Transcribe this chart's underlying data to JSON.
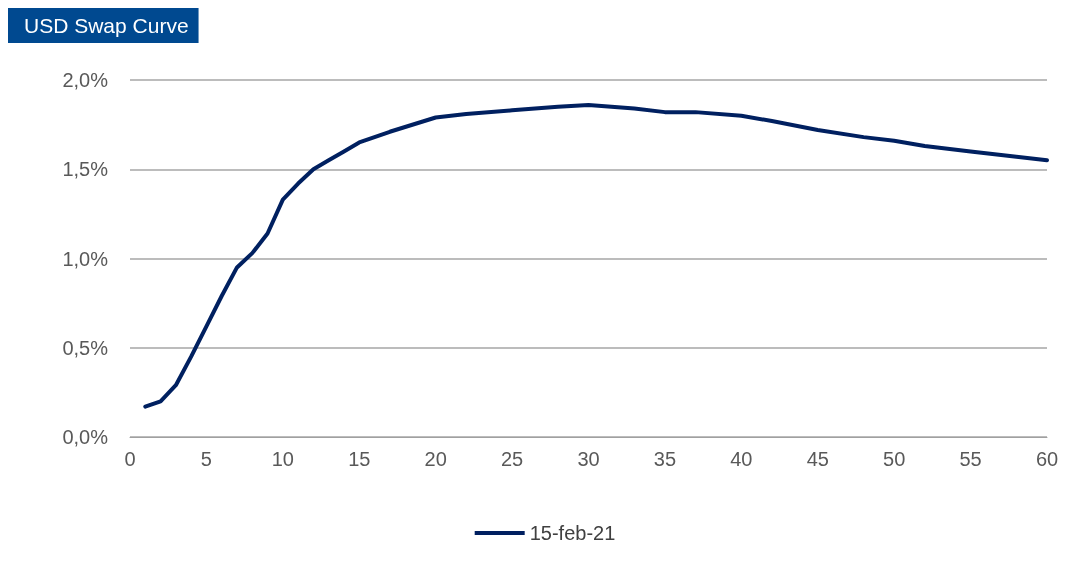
{
  "chart_data": {
    "type": "line",
    "title": "USD Swap Curve",
    "x": [
      1,
      2,
      3,
      4,
      5,
      6,
      7,
      8,
      9,
      10,
      11,
      12,
      13,
      14,
      15,
      17,
      20,
      22,
      25,
      28,
      30,
      33,
      35,
      37,
      40,
      42,
      45,
      48,
      50,
      52,
      55,
      58,
      60
    ],
    "series": [
      {
        "name": "15-feb-21",
        "color": "#002060",
        "values": [
          0.17,
          0.2,
          0.29,
          0.45,
          0.62,
          0.79,
          0.95,
          1.03,
          1.14,
          1.33,
          1.42,
          1.5,
          1.55,
          1.6,
          1.65,
          1.71,
          1.79,
          1.81,
          1.83,
          1.85,
          1.86,
          1.84,
          1.82,
          1.82,
          1.8,
          1.77,
          1.72,
          1.68,
          1.66,
          1.63,
          1.6,
          1.57,
          1.55
        ]
      }
    ],
    "xlim": [
      0,
      60
    ],
    "xticks": [
      0,
      5,
      10,
      15,
      20,
      25,
      30,
      35,
      40,
      45,
      50,
      55,
      60
    ],
    "ylim": [
      0,
      2
    ],
    "yticks": [
      {
        "value": 0,
        "label": "0,0%"
      },
      {
        "value": 0.5,
        "label": "0,5%"
      },
      {
        "value": 1,
        "label": "1,0%"
      },
      {
        "value": 1.5,
        "label": "1,5%"
      },
      {
        "value": 2,
        "label": "2,0%"
      }
    ],
    "grid": "y",
    "legend": "bottom",
    "marker": "none",
    "line_style": "solid"
  }
}
